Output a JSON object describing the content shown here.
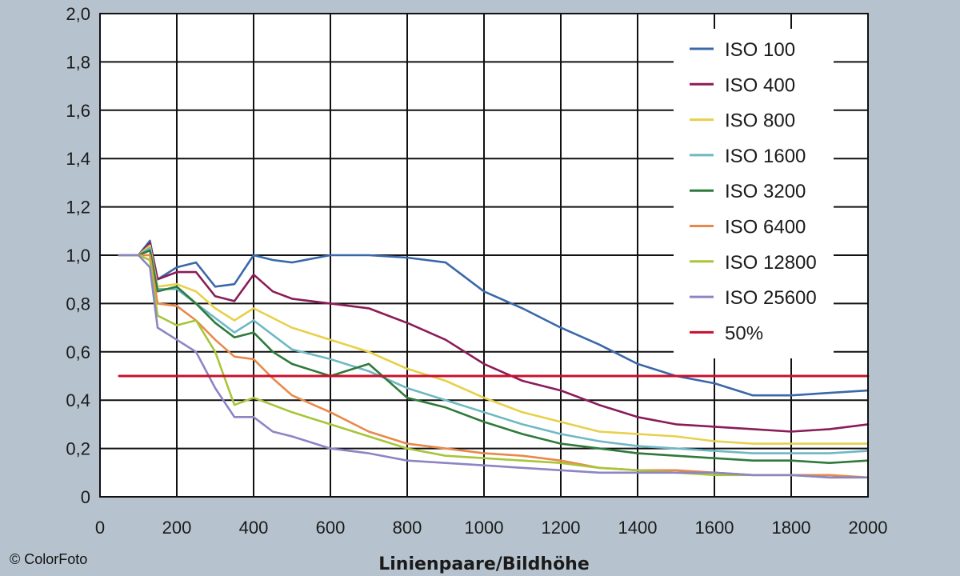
{
  "chart_data": {
    "type": "line",
    "xlabel": "Linienpaare/Bildhöhe",
    "ylabel": "",
    "xlim": [
      0,
      2000
    ],
    "ylim": [
      0,
      2.0
    ],
    "x_ticks": [
      0,
      200,
      400,
      600,
      800,
      1000,
      1200,
      1400,
      1600,
      1800,
      2000
    ],
    "x_tick_labels": [
      "0",
      "200",
      "400",
      "600",
      "800",
      "1000",
      "1200",
      "1400",
      "1600",
      "1800",
      "2000"
    ],
    "y_ticks": [
      0,
      0.2,
      0.4,
      0.6,
      0.8,
      1.0,
      1.2,
      1.4,
      1.6,
      1.8,
      2.0
    ],
    "y_tick_labels": [
      "0",
      "0,2",
      "0,4",
      "0,6",
      "0,8",
      "1,0",
      "1,2",
      "1,4",
      "1,6",
      "1,8",
      "2,0"
    ],
    "grid": true,
    "legend_position": "top-right",
    "x": [
      50,
      100,
      130,
      150,
      200,
      250,
      300,
      350,
      400,
      450,
      500,
      600,
      700,
      800,
      900,
      1000,
      1100,
      1200,
      1300,
      1400,
      1500,
      1600,
      1700,
      1800,
      1900,
      2000
    ],
    "series": [
      {
        "name": "ISO 100",
        "color": "#3a68a8",
        "values": [
          1.0,
          1.0,
          1.06,
          0.9,
          0.95,
          0.97,
          0.87,
          0.88,
          1.0,
          0.98,
          0.97,
          1.0,
          1.0,
          0.99,
          0.97,
          0.85,
          0.78,
          0.7,
          0.63,
          0.55,
          0.5,
          0.47,
          0.42,
          0.42,
          0.43,
          0.44
        ]
      },
      {
        "name": "ISO 400",
        "color": "#8a1c58",
        "values": [
          1.0,
          1.0,
          1.05,
          0.9,
          0.93,
          0.93,
          0.83,
          0.81,
          0.92,
          0.85,
          0.82,
          0.8,
          0.78,
          0.72,
          0.65,
          0.55,
          0.48,
          0.44,
          0.38,
          0.33,
          0.3,
          0.29,
          0.28,
          0.27,
          0.28,
          0.3
        ]
      },
      {
        "name": "ISO 800",
        "color": "#e8d04a",
        "values": [
          1.0,
          1.0,
          1.04,
          0.87,
          0.88,
          0.85,
          0.78,
          0.73,
          0.78,
          0.74,
          0.7,
          0.65,
          0.6,
          0.53,
          0.48,
          0.41,
          0.35,
          0.31,
          0.27,
          0.26,
          0.25,
          0.23,
          0.22,
          0.22,
          0.22,
          0.22
        ]
      },
      {
        "name": "ISO 1600",
        "color": "#6fb8c4",
        "values": [
          1.0,
          1.0,
          1.03,
          0.86,
          0.86,
          0.8,
          0.74,
          0.68,
          0.73,
          0.67,
          0.61,
          0.57,
          0.52,
          0.45,
          0.4,
          0.35,
          0.3,
          0.26,
          0.23,
          0.21,
          0.2,
          0.19,
          0.18,
          0.18,
          0.18,
          0.19
        ]
      },
      {
        "name": "ISO 3200",
        "color": "#2f7a3a",
        "values": [
          1.0,
          1.0,
          1.02,
          0.85,
          0.87,
          0.8,
          0.72,
          0.66,
          0.68,
          0.6,
          0.55,
          0.5,
          0.55,
          0.41,
          0.37,
          0.31,
          0.26,
          0.22,
          0.2,
          0.18,
          0.17,
          0.16,
          0.15,
          0.15,
          0.14,
          0.15
        ]
      },
      {
        "name": "ISO 6400",
        "color": "#e8894a",
        "values": [
          1.0,
          1.0,
          1.0,
          0.8,
          0.79,
          0.73,
          0.65,
          0.58,
          0.57,
          0.49,
          0.42,
          0.35,
          0.27,
          0.22,
          0.2,
          0.18,
          0.17,
          0.15,
          0.12,
          0.11,
          0.11,
          0.1,
          0.09,
          0.09,
          0.09,
          0.08
        ]
      },
      {
        "name": "ISO 12800",
        "color": "#a8c53a",
        "values": [
          1.0,
          1.0,
          0.98,
          0.75,
          0.71,
          0.73,
          0.6,
          0.38,
          0.41,
          0.38,
          0.35,
          0.3,
          0.25,
          0.2,
          0.17,
          0.16,
          0.15,
          0.14,
          0.12,
          0.11,
          0.1,
          0.09,
          0.09,
          0.09,
          0.08,
          0.08
        ]
      },
      {
        "name": "ISO 25600",
        "color": "#8c85c4",
        "values": [
          1.0,
          1.0,
          0.95,
          0.7,
          0.65,
          0.6,
          0.45,
          0.33,
          0.33,
          0.27,
          0.25,
          0.2,
          0.18,
          0.15,
          0.14,
          0.13,
          0.12,
          0.11,
          0.1,
          0.1,
          0.1,
          0.1,
          0.09,
          0.09,
          0.08,
          0.08
        ]
      },
      {
        "name": "50%",
        "color": "#c8102e",
        "values": [
          0.5,
          0.5,
          0.5,
          0.5,
          0.5,
          0.5,
          0.5,
          0.5,
          0.5,
          0.5,
          0.5,
          0.5,
          0.5,
          0.5,
          0.5,
          0.5,
          0.5,
          0.5,
          0.5,
          0.5,
          0.5,
          0.5,
          0.5,
          0.5,
          0.5,
          0.5
        ]
      }
    ]
  },
  "copyright": "© ColorFoto"
}
